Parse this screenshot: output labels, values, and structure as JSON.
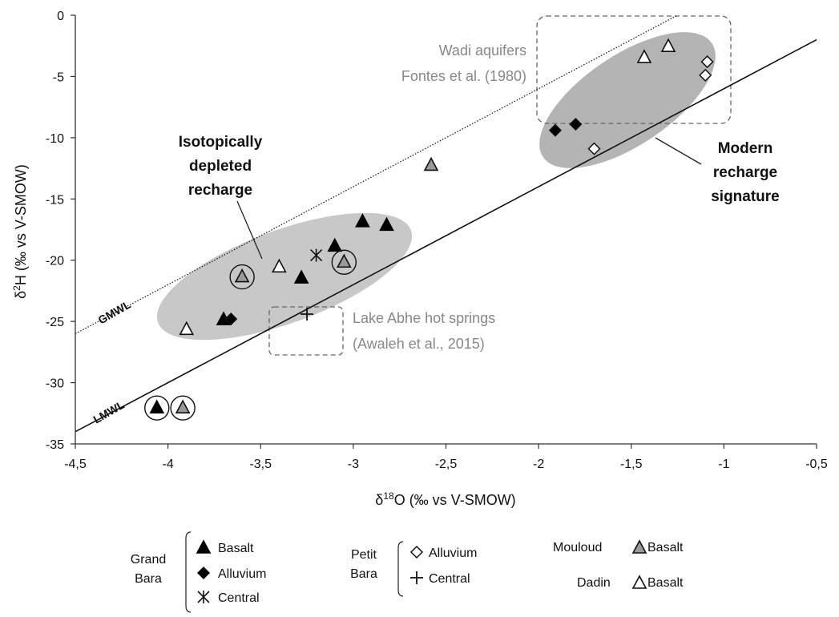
{
  "chart_data": {
    "type": "scatter",
    "xlabel": "δ18O (‰ vs V-SMOW)",
    "ylabel": "δ2H (‰ vs V-SMOW)",
    "xlim": [
      -4.5,
      -0.5
    ],
    "ylim": [
      -35,
      0
    ],
    "xticks": [
      "-4,5",
      "-4",
      "-3,5",
      "-3",
      "-2,5",
      "-2",
      "-1,5",
      "-1",
      "-0,5"
    ],
    "yticks": [
      "0",
      "-5",
      "-10",
      "-15",
      "-20",
      "-25",
      "-30",
      "-35"
    ],
    "grid": false,
    "lines": [
      {
        "name": "GMWL",
        "slope": 8,
        "intercept": 10,
        "style": "dotted"
      },
      {
        "name": "LMWL",
        "slope": 8,
        "intercept": 2,
        "style": "solid"
      }
    ],
    "series": [
      {
        "group": "Grand Bara",
        "name": "Basalt",
        "marker": "filled-triangle",
        "x": [
          -4.06,
          -3.7,
          -3.28,
          -3.1,
          -2.95,
          -2.82
        ],
        "y": [
          -32.0,
          -24.8,
          -21.4,
          -18.8,
          -16.8,
          -17.1
        ],
        "circled": [
          true,
          false,
          false,
          false,
          false,
          false
        ]
      },
      {
        "group": "Grand Bara",
        "name": "Alluvium",
        "marker": "filled-diamond",
        "x": [
          -3.66,
          -1.91,
          -1.8
        ],
        "y": [
          -24.8,
          -9.4,
          -8.9
        ]
      },
      {
        "group": "Grand Bara",
        "name": "Central",
        "marker": "asterisk",
        "x": [
          -3.2
        ],
        "y": [
          -19.6
        ]
      },
      {
        "group": "Petit Bara",
        "name": "Alluvium",
        "marker": "open-diamond",
        "x": [
          -1.7,
          -1.09,
          -1.1
        ],
        "y": [
          -10.9,
          -3.8,
          -4.9
        ]
      },
      {
        "group": "Petit Bara",
        "name": "Central",
        "marker": "plus",
        "x": [
          -3.25
        ],
        "y": [
          -24.4
        ]
      },
      {
        "group": "Mouloud",
        "name": "Basalt",
        "marker": "grey-triangle",
        "x": [
          -3.92,
          -3.6,
          -2.58,
          -3.05
        ],
        "y": [
          -32.0,
          -21.3,
          -12.2,
          -20.1
        ],
        "circled": [
          true,
          true,
          false,
          true
        ]
      },
      {
        "group": "Dadin",
        "name": "Basalt",
        "marker": "open-triangle",
        "x": [
          -3.9,
          -3.4,
          -1.43,
          -1.3
        ],
        "y": [
          -25.6,
          -20.5,
          -3.4,
          -2.5
        ]
      }
    ],
    "annotations": {
      "depleted": [
        "Isotopically",
        "depleted",
        "recharge"
      ],
      "modern": [
        "Modern",
        "recharge",
        "signature"
      ],
      "wadi": [
        "Wadi aquifers",
        "Fontes et al. (1980)"
      ],
      "lake": [
        "Lake Abhe hot springs",
        "(Awaleh et al., 2015)"
      ],
      "gmwl": "GMWL",
      "lmwl": "LMWL"
    },
    "legend": {
      "placement": "bottom",
      "groups": [
        {
          "label": [
            "Grand",
            "Bara"
          ],
          "items": [
            "Basalt",
            "Alluvium",
            "Central"
          ]
        },
        {
          "label": [
            "Petit",
            "Bara"
          ],
          "items": [
            "Alluvium",
            "Central"
          ]
        },
        {
          "label": [
            "Mouloud"
          ],
          "items": [
            "Basalt"
          ]
        },
        {
          "label": [
            "Dadin"
          ],
          "items": [
            "Basalt"
          ]
        }
      ]
    },
    "colors": {
      "ellipse": "#c8c8c8",
      "ellipse_dark": "#b4b4b4",
      "grey_marker": "#999999",
      "annotation_grey": "#888888"
    }
  }
}
